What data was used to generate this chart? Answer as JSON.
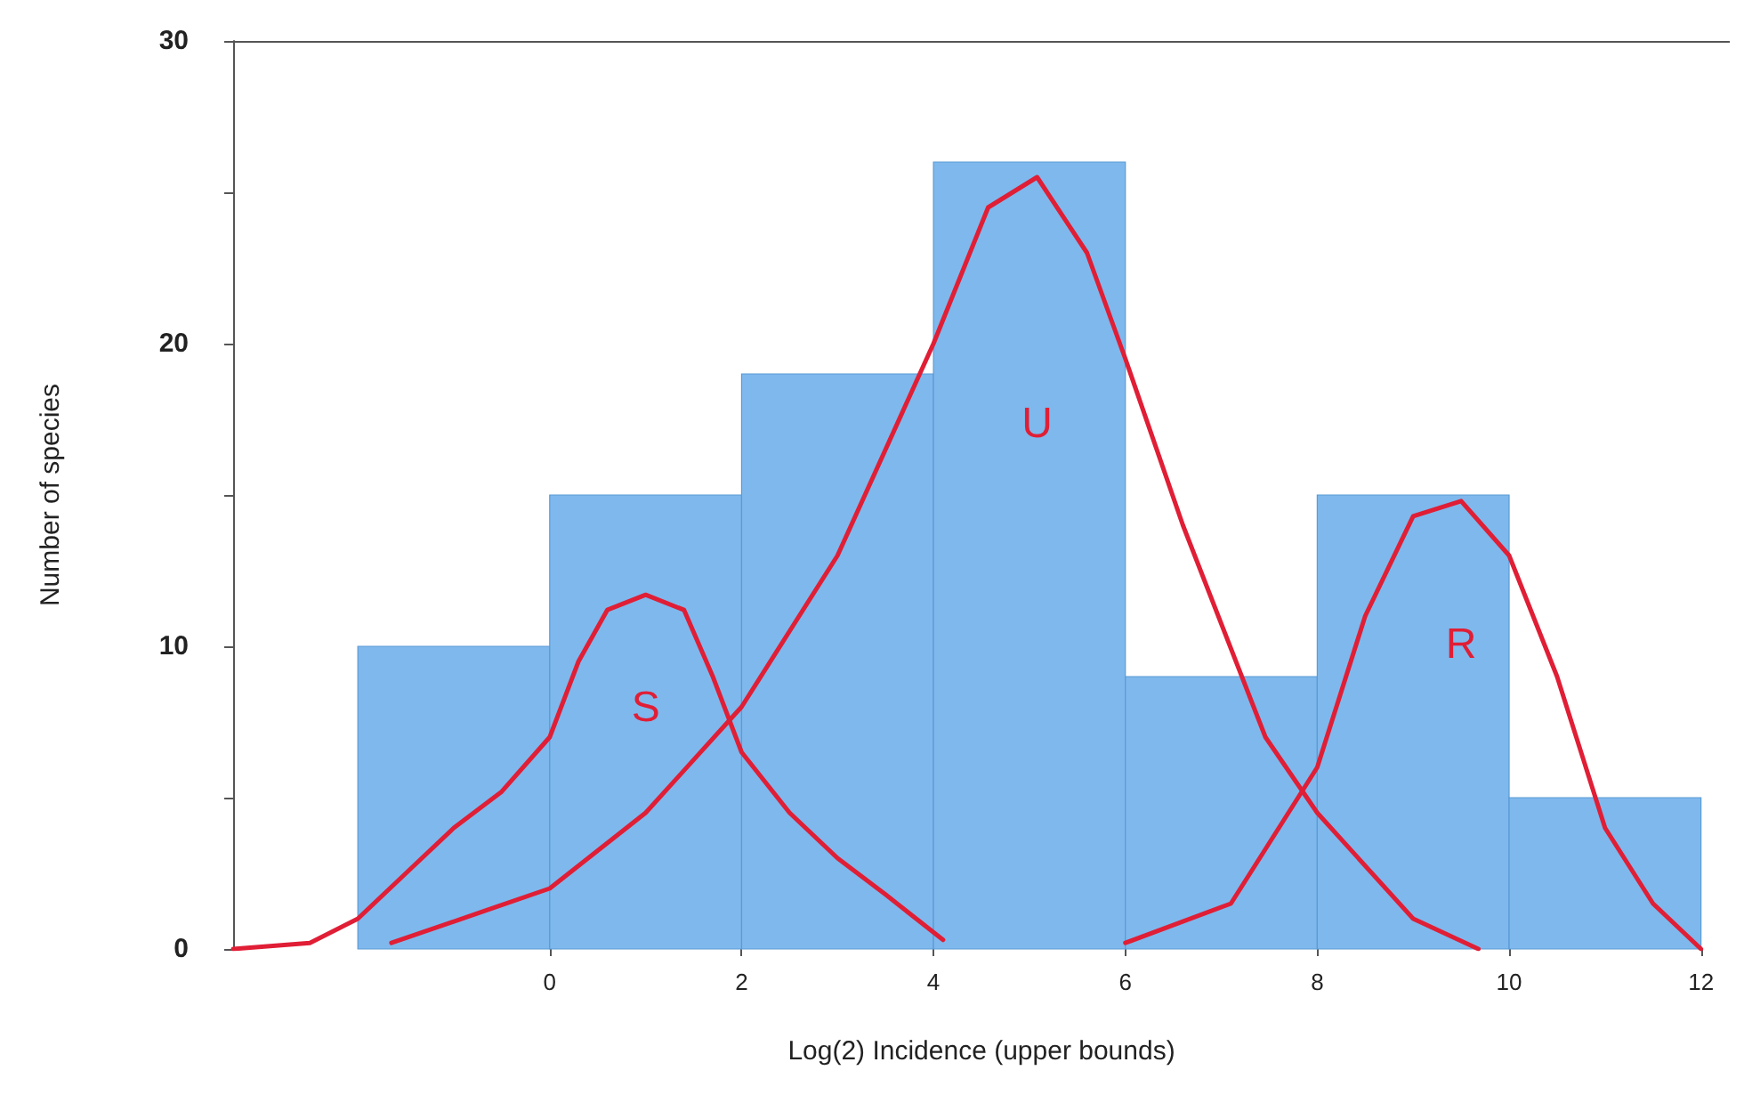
{
  "chart_data": {
    "type": "histogram",
    "xlabel": "Log(2) Incidence (upper bounds)",
    "ylabel": "Number of species",
    "bins": [
      -2,
      0,
      2,
      4,
      6,
      8,
      10,
      12
    ],
    "values": [
      10,
      15,
      19,
      26,
      9,
      15,
      5
    ],
    "color": "#7fb8ec",
    "series": [
      {
        "type": "line",
        "name": "S",
        "color": "#e01e35",
        "x": [
          -3.3,
          -2.5,
          -2,
          -1.5,
          -1,
          -0.5,
          0,
          0.3,
          0.6,
          1,
          1.4,
          1.7,
          2,
          2.5,
          3,
          3.5,
          4.1
        ],
        "values": [
          0,
          0.2,
          1,
          2.5,
          4,
          5.2,
          7,
          9.5,
          11.2,
          11.7,
          11.2,
          9,
          6.5,
          4.5,
          3,
          1.8,
          0.3
        ]
      },
      {
        "type": "line",
        "name": "U",
        "color": "#e01e35",
        "x": [
          -1.65,
          0,
          1,
          2,
          3,
          4,
          4.57,
          5.08,
          5.6,
          6,
          6.6,
          7.46,
          8,
          9,
          9.68
        ],
        "values": [
          0.2,
          2,
          4.5,
          8,
          13,
          20,
          24.5,
          25.5,
          23,
          19.5,
          14,
          7,
          4.5,
          1,
          0
        ]
      },
      {
        "type": "line",
        "name": "R",
        "color": "#e01e35",
        "x": [
          6,
          7.1,
          8,
          8.5,
          9,
          9.5,
          10,
          10.5,
          11,
          11.5,
          12
        ],
        "values": [
          0.2,
          1.5,
          6,
          11,
          14.3,
          14.8,
          13,
          9,
          4,
          1.5,
          0
        ]
      }
    ],
    "xlim": [
      -3.3,
      12.3
    ],
    "xticks": [
      0,
      2,
      4,
      6,
      8,
      10,
      12
    ],
    "ylim": [
      0,
      30
    ],
    "yticks": [
      0,
      {
        "value": 5,
        "label": null
      },
      10,
      {
        "value": 15,
        "label": null
      },
      20,
      {
        "value": 25,
        "label": null
      },
      30
    ],
    "grid": false,
    "legend": false,
    "marker": "none",
    "line_style": "solid"
  }
}
